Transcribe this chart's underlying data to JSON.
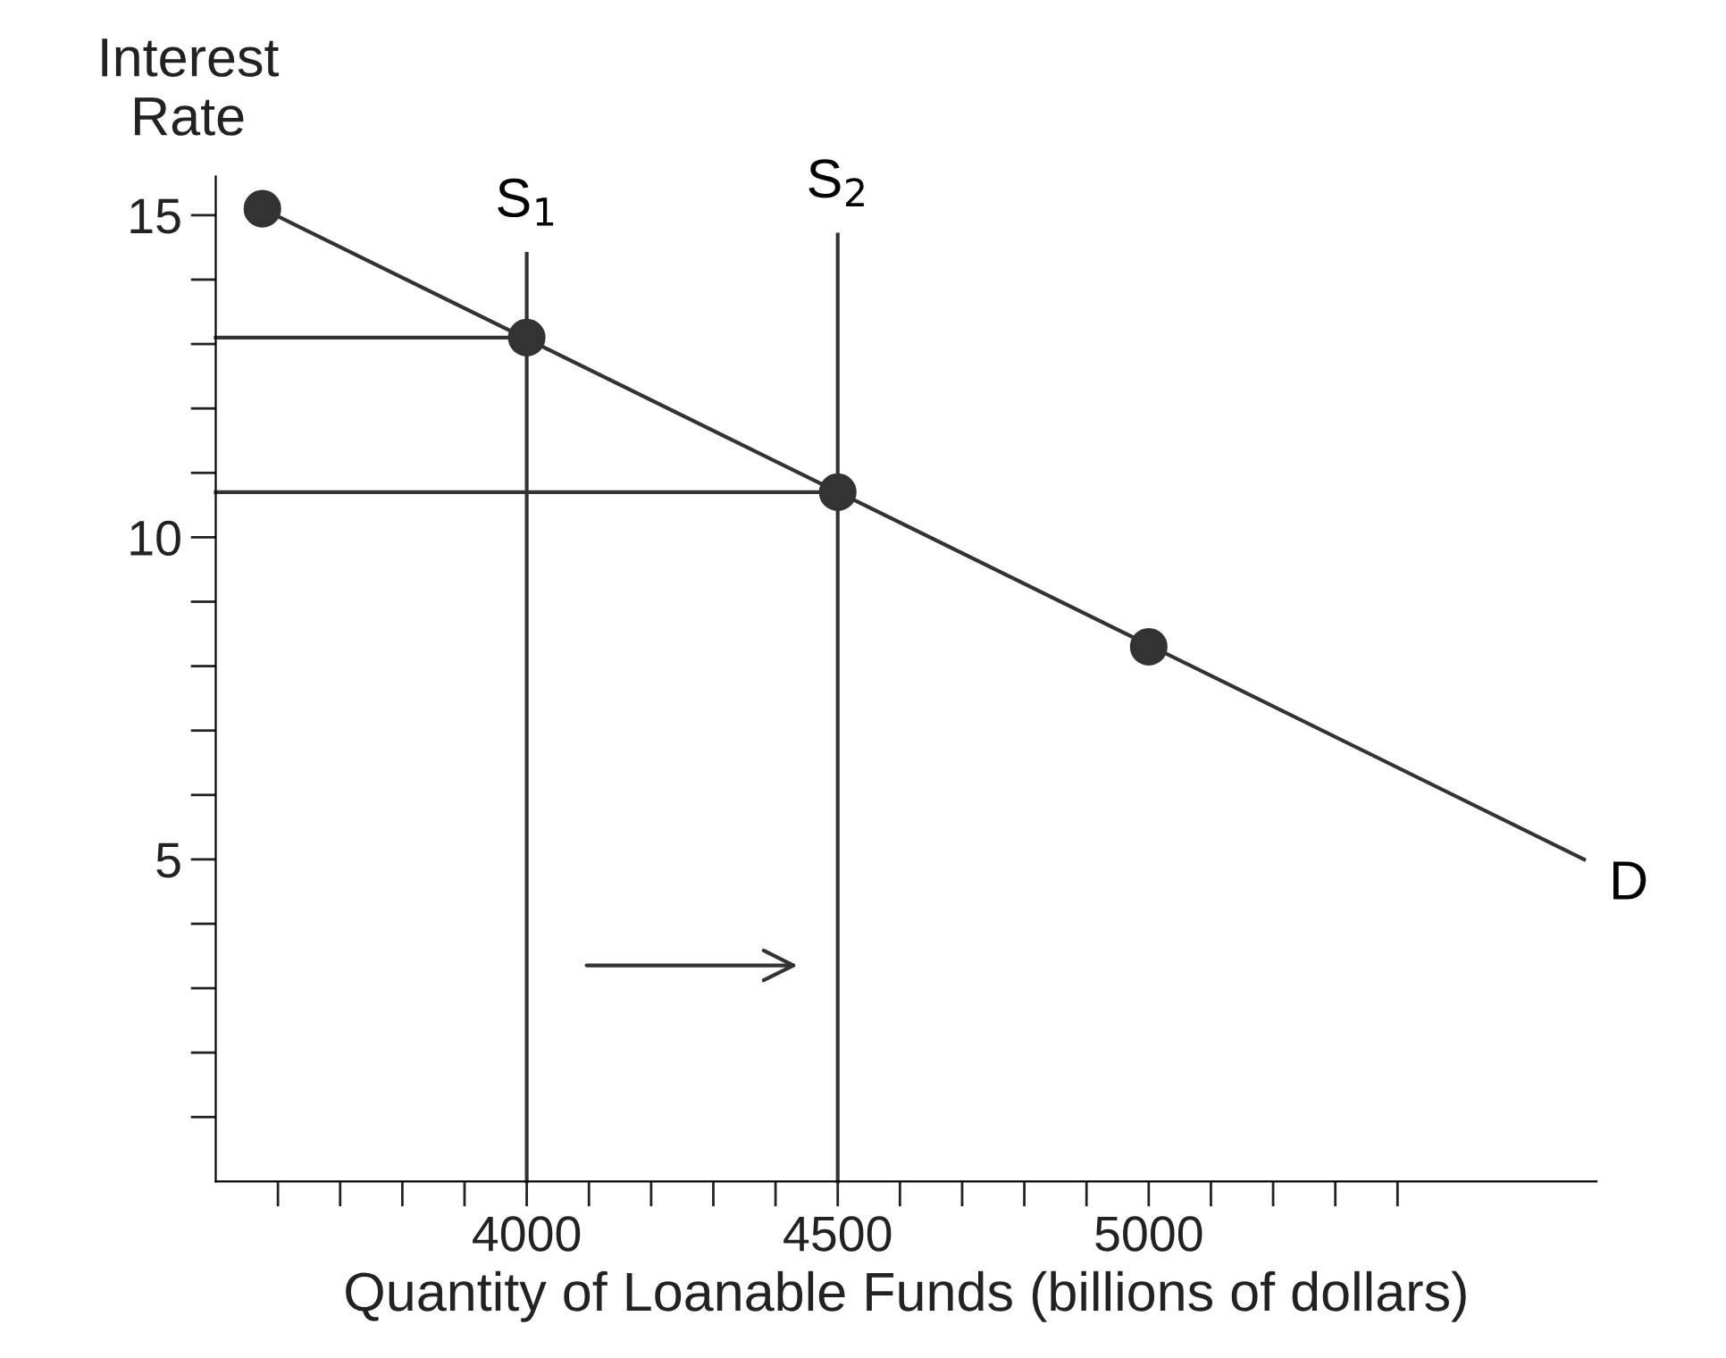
{
  "chart_data": {
    "type": "line",
    "xlabel": "Quantity of Loanable Funds (billions of dollars)",
    "ylabel": "Interest\nRate",
    "xlim": [
      3500,
      5720
    ],
    "ylim": [
      0,
      15.6
    ],
    "xticks": [
      {
        "value": 3600,
        "label": null
      },
      {
        "value": 3700,
        "label": null
      },
      {
        "value": 3800,
        "label": null
      },
      {
        "value": 3900,
        "label": null
      },
      4000,
      {
        "value": 4100,
        "label": null
      },
      {
        "value": 4200,
        "label": null
      },
      {
        "value": 4300,
        "label": null
      },
      {
        "value": 4400,
        "label": null
      },
      4500,
      {
        "value": 4600,
        "label": null
      },
      {
        "value": 4700,
        "label": null
      },
      {
        "value": 4800,
        "label": null
      },
      {
        "value": 4900,
        "label": null
      },
      5000,
      {
        "value": 5100,
        "label": null
      },
      {
        "value": 5200,
        "label": null
      },
      {
        "value": 5300,
        "label": null
      },
      {
        "value": 5400,
        "label": null
      }
    ],
    "yticks": [
      {
        "value": 1,
        "label": null
      },
      {
        "value": 2,
        "label": null
      },
      {
        "value": 3,
        "label": null
      },
      {
        "value": 4,
        "label": null
      },
      5,
      {
        "value": 6,
        "label": null
      },
      {
        "value": 7,
        "label": null
      },
      {
        "value": 8,
        "label": null
      },
      {
        "value": 9,
        "label": null
      },
      10,
      {
        "value": 11,
        "label": null
      },
      {
        "value": 12,
        "label": null
      },
      {
        "value": 13,
        "label": null
      },
      {
        "value": 14,
        "label": null
      },
      15
    ],
    "grid": false,
    "legend": false,
    "series": [
      {
        "name": "D",
        "color": "#333333",
        "x": [
          3575,
          5700
        ],
        "values": [
          15.1,
          5.0
        ]
      },
      {
        "name": "S$_{1}$",
        "color": "#333333",
        "x": [
          4000,
          4000
        ],
        "values": [
          0,
          14.4
        ]
      },
      {
        "name": "S$_{2}$",
        "color": "#333333",
        "x": [
          4500,
          4500
        ],
        "values": [
          0,
          14.7
        ]
      },
      {
        "color": "#333333",
        "x": [
          3500,
          4000
        ],
        "values": [
          13.1,
          13.1
        ]
      },
      {
        "color": "#333333",
        "x": [
          3500,
          4500
        ],
        "values": [
          10.7,
          10.7
        ]
      },
      {
        "type": "scatter",
        "color": "#333333",
        "marker": "circle",
        "x": [
          3575,
          4000,
          4500,
          5000
        ],
        "values": [
          15.1,
          13.1,
          10.7,
          8.3
        ]
      }
    ]
  }
}
